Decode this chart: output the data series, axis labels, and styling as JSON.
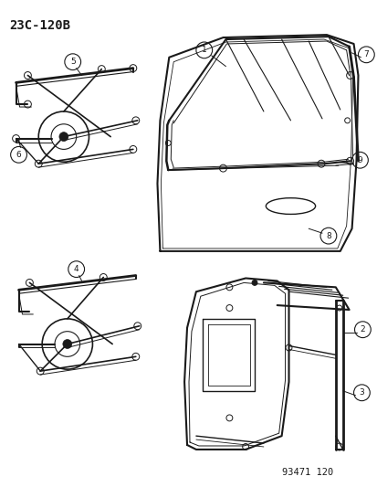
{
  "title": "23C-120B",
  "footer": "93471 120",
  "bg_color": "#ffffff",
  "line_color": "#1a1a1a",
  "title_fontsize": 10,
  "footer_fontsize": 7.5,
  "label_fontsize": 6.5
}
